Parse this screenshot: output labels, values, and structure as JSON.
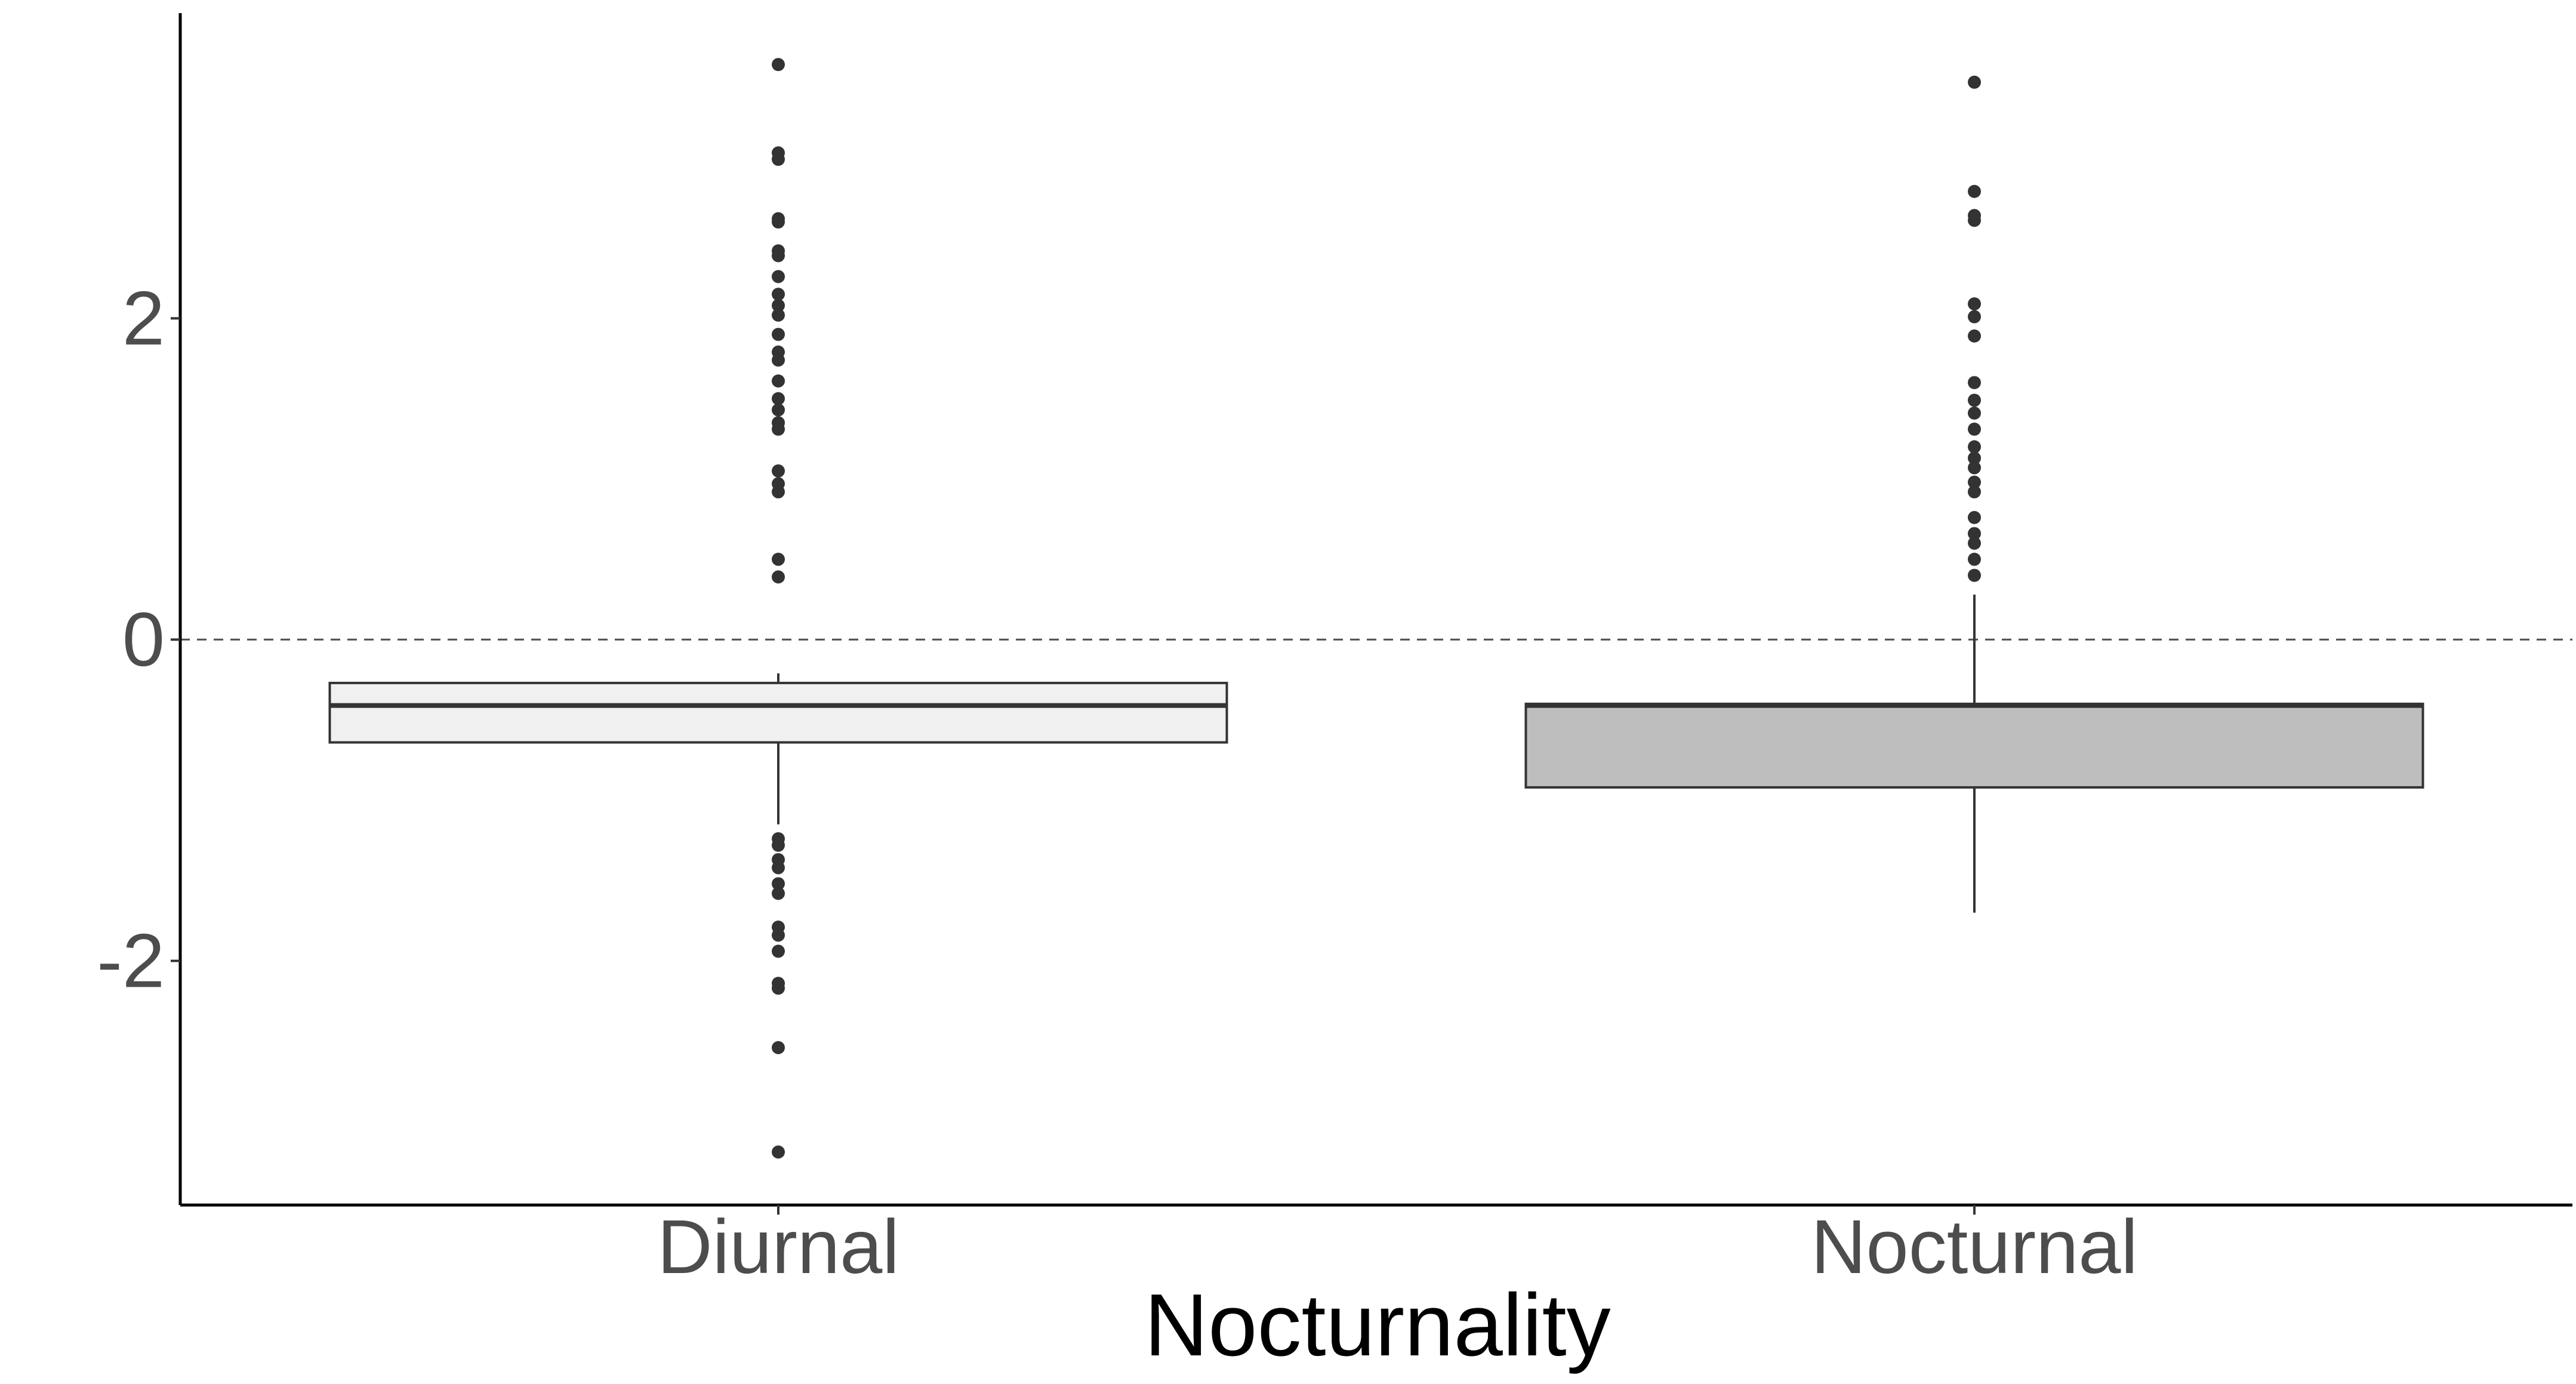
{
  "chart_data": {
    "type": "box",
    "title": "",
    "xlabel": "Nocturnality",
    "ylabel": "",
    "ylim": [
      -3.52,
      3.9
    ],
    "y_ticks": [
      -2,
      0,
      2
    ],
    "y_tick_labels": [
      "-2",
      "0",
      "2"
    ],
    "reference_line": {
      "y": 0,
      "style": "dashed"
    },
    "grid": false,
    "legend": "none",
    "categories": [
      "Diurnal",
      "Nocturnal"
    ],
    "boxes": [
      {
        "name": "Diurnal",
        "whisker_low": -1.15,
        "q1": -0.64,
        "median": -0.41,
        "q3": -0.27,
        "whisker_high": -0.21,
        "fill": "#f0f0f0",
        "outliers": [
          3.58,
          3.03,
          2.99,
          2.62,
          2.6,
          2.42,
          2.39,
          2.26,
          2.15,
          2.08,
          2.02,
          1.9,
          1.79,
          1.74,
          1.61,
          1.5,
          1.43,
          1.35,
          1.31,
          1.05,
          0.97,
          0.92,
          0.5,
          0.39,
          -1.24,
          -1.28,
          -1.37,
          -1.42,
          -1.52,
          -1.58,
          -1.79,
          -1.84,
          -1.94,
          -2.14,
          -2.17,
          -2.54,
          -3.19
        ]
      },
      {
        "name": "Nocturnal",
        "whisker_low": -1.7,
        "q1": -0.92,
        "median": -0.41,
        "q3": -0.4,
        "whisker_high": 0.28,
        "fill": "#bebebe",
        "outliers": [
          3.47,
          2.79,
          2.64,
          2.61,
          2.09,
          2.01,
          1.89,
          1.6,
          1.49,
          1.41,
          1.31,
          1.2,
          1.13,
          1.07,
          0.98,
          0.92,
          0.76,
          0.66,
          0.6,
          0.5,
          0.4
        ]
      }
    ]
  }
}
